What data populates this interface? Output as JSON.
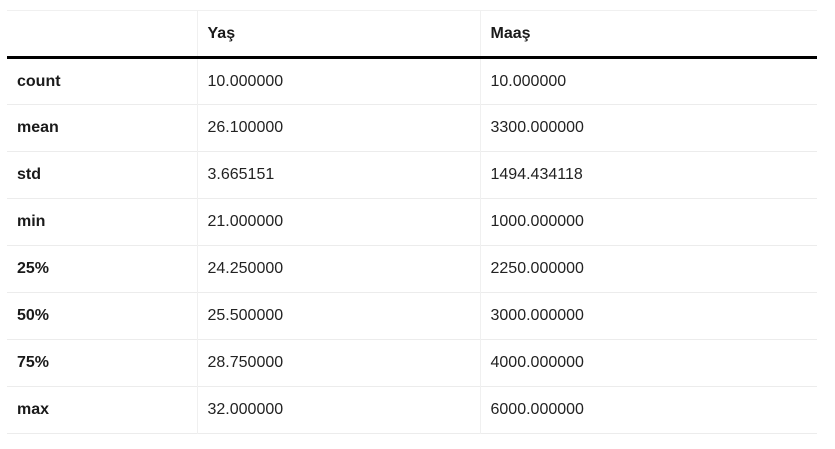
{
  "table": {
    "columns": [
      "",
      "Yaş",
      "Maaş"
    ],
    "rows": [
      {
        "label": "count",
        "values": [
          "10.000000",
          "10.000000"
        ]
      },
      {
        "label": "mean",
        "values": [
          "26.100000",
          "3300.000000"
        ]
      },
      {
        "label": "std",
        "values": [
          "3.665151",
          "1494.434118"
        ]
      },
      {
        "label": "min",
        "values": [
          "21.000000",
          "1000.000000"
        ]
      },
      {
        "label": "25%",
        "values": [
          "24.250000",
          "2250.000000"
        ]
      },
      {
        "label": "50%",
        "values": [
          "25.500000",
          "3000.000000"
        ]
      },
      {
        "label": "75%",
        "values": [
          "28.750000",
          "4000.000000"
        ]
      },
      {
        "label": "max",
        "values": [
          "32.000000",
          "6000.000000"
        ]
      }
    ]
  }
}
